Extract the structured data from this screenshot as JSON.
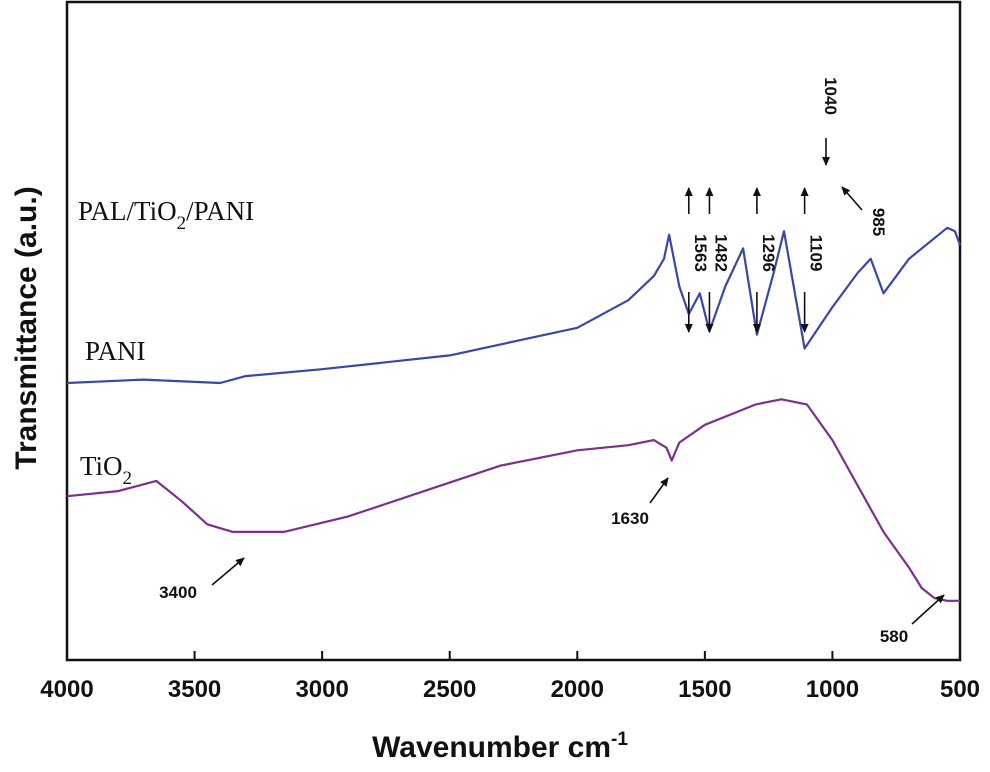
{
  "chart_data": {
    "type": "line",
    "title": "",
    "xlabel": "Wavenumber cm",
    "xlabel_superscript": "-1",
    "ylabel": "Transmittance (a.u.)",
    "xlim": [
      4000,
      500
    ],
    "x_ticks": [
      "4000",
      "3500",
      "3000",
      "2500",
      "2000",
      "1500",
      "1000",
      "500"
    ],
    "y_ticks_shown": false,
    "grid": false,
    "legend": "inline labels at left",
    "series": [
      {
        "name": "PAL/TiO2/PANI",
        "label_main": "PAL/TiO",
        "label_sub": "2",
        "label_tail": "/PANI",
        "color": "#2e8b3c",
        "x": [
          4000,
          3900,
          3800,
          3650,
          3550,
          3450,
          3400,
          3300,
          3200,
          3000,
          2900,
          2500,
          2000,
          1800,
          1700,
          1650,
          1630,
          1600,
          1563,
          1520,
          1482,
          1420,
          1350,
          1296,
          1230,
          1190,
          1109,
          1060,
          1040,
          1010,
          985,
          900,
          850,
          800,
          700,
          550,
          520,
          500
        ],
        "y": [
          0.8,
          0.81,
          0.82,
          0.82,
          0.79,
          0.74,
          0.75,
          0.79,
          0.81,
          0.83,
          0.84,
          0.87,
          0.92,
          0.95,
          0.97,
          0.99,
          1.03,
          0.97,
          0.94,
          1.0,
          0.93,
          1.0,
          1.11,
          0.93,
          1.08,
          1.2,
          0.94,
          1.01,
          0.98,
          0.97,
          0.95,
          1.06,
          1.1,
          1.03,
          1.12,
          1.2,
          1.18,
          1.14
        ]
      },
      {
        "name": "PANI",
        "label_main": "PANI",
        "label_sub": "",
        "label_tail": "",
        "color": "#3b46a8",
        "x": [
          4000,
          3700,
          3400,
          3300,
          3000,
          2500,
          2000,
          1800,
          1700,
          1660,
          1640,
          1600,
          1563,
          1520,
          1482,
          1420,
          1350,
          1296,
          1230,
          1190,
          1109,
          1000,
          900,
          850,
          800,
          700,
          550,
          520,
          500
        ],
        "y": [
          0.0,
          0.01,
          0.0,
          0.02,
          0.04,
          0.08,
          0.16,
          0.24,
          0.31,
          0.36,
          0.43,
          0.28,
          0.2,
          0.26,
          0.15,
          0.28,
          0.39,
          0.14,
          0.32,
          0.44,
          0.1,
          0.22,
          0.32,
          0.36,
          0.26,
          0.36,
          0.45,
          0.44,
          0.4
        ]
      },
      {
        "name": "TiO2",
        "label_main": "TiO",
        "label_sub": "2",
        "label_tail": "",
        "color": "#7b2f8f",
        "x": [
          4000,
          3800,
          3650,
          3550,
          3450,
          3350,
          3150,
          2900,
          2600,
          2300,
          2000,
          1800,
          1700,
          1650,
          1630,
          1600,
          1500,
          1400,
          1300,
          1200,
          1100,
          1000,
          900,
          800,
          700,
          650,
          600,
          550,
          500
        ],
        "y": [
          0.36,
          0.38,
          0.42,
          0.34,
          0.25,
          0.22,
          0.22,
          0.28,
          0.38,
          0.48,
          0.54,
          0.56,
          0.58,
          0.55,
          0.5,
          0.57,
          0.64,
          0.68,
          0.72,
          0.74,
          0.72,
          0.58,
          0.4,
          0.22,
          0.08,
          0.0,
          -0.04,
          -0.05,
          -0.05
        ]
      }
    ],
    "annotations": [
      {
        "text": "3400",
        "series": 2,
        "x": 3400
      },
      {
        "text": "1630",
        "series": 2,
        "x": 1630
      },
      {
        "text": "580",
        "series": 2,
        "x": 580
      },
      {
        "text": "1563",
        "series": 0,
        "x": 1563
      },
      {
        "text": "1482",
        "series": 0,
        "x": 1482
      },
      {
        "text": "1296",
        "series": 0,
        "x": 1296
      },
      {
        "text": "1109",
        "series": 0,
        "x": 1109
      },
      {
        "text": "1040",
        "series": 0,
        "x": 1040
      },
      {
        "text": "985",
        "series": 0,
        "x": 985
      }
    ]
  }
}
